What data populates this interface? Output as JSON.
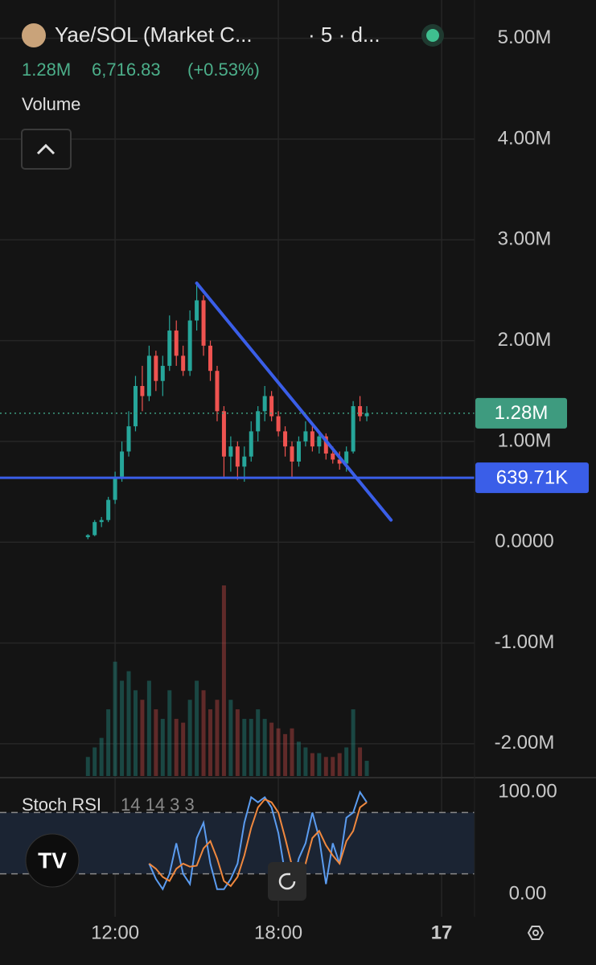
{
  "header": {
    "title": "Yae/SOL (Market C...",
    "interval": "· 5 · d...",
    "price_values": [
      "1.28M",
      "6,716.83",
      "(+0.53%)"
    ],
    "indicator": "Volume"
  },
  "chart_data": [
    {
      "type": "candlestick",
      "up_color": "#26a69a",
      "down_color": "#ef5350",
      "grid": true,
      "x": [
        11,
        11.25,
        11.5,
        11.75,
        12,
        12.25,
        12.5,
        12.75,
        13,
        13.25,
        13.5,
        13.75,
        14,
        14.25,
        14.5,
        14.75,
        15,
        15.25,
        15.5,
        15.75,
        16,
        16.25,
        16.5,
        16.75,
        17,
        17.25,
        17.5,
        17.75,
        18,
        18.25,
        18.5,
        18.75,
        19,
        19.25,
        19.5,
        19.75,
        20,
        20.25,
        20.5,
        20.75,
        21,
        21.25
      ],
      "open": [
        0.05,
        0.07,
        0.2,
        0.22,
        0.42,
        0.65,
        0.9,
        1.15,
        1.55,
        1.45,
        1.85,
        1.6,
        1.75,
        2.1,
        1.85,
        1.7,
        2.2,
        2.4,
        1.95,
        1.7,
        1.3,
        0.85,
        0.95,
        0.75,
        0.85,
        1.1,
        1.3,
        1.45,
        1.25,
        1.1,
        0.95,
        0.8,
        1.0,
        1.1,
        0.95,
        1.05,
        0.88,
        0.82,
        0.78,
        0.9,
        1.35,
        1.25
      ],
      "high": [
        0.08,
        0.22,
        0.25,
        0.45,
        0.7,
        1.0,
        1.3,
        1.65,
        1.75,
        1.95,
        1.9,
        1.85,
        2.25,
        2.2,
        1.95,
        2.3,
        2.57,
        2.45,
        2.0,
        1.75,
        1.35,
        1.05,
        1.0,
        0.95,
        1.2,
        1.35,
        1.55,
        1.5,
        1.3,
        1.15,
        1.0,
        1.05,
        1.2,
        1.15,
        1.1,
        1.08,
        0.95,
        0.9,
        0.95,
        1.4,
        1.45,
        1.35
      ],
      "low": [
        0.03,
        0.06,
        0.15,
        0.2,
        0.38,
        0.6,
        0.85,
        1.1,
        1.3,
        1.4,
        1.5,
        1.45,
        1.7,
        1.75,
        1.65,
        1.65,
        2.1,
        1.85,
        1.6,
        1.2,
        0.65,
        0.7,
        0.62,
        0.6,
        0.8,
        1.0,
        1.2,
        1.2,
        1.05,
        0.85,
        0.64,
        0.75,
        0.95,
        0.9,
        0.88,
        0.82,
        0.78,
        0.72,
        0.7,
        0.88,
        1.2,
        1.2
      ],
      "close": [
        0.07,
        0.2,
        0.22,
        0.42,
        0.65,
        0.9,
        1.15,
        1.55,
        1.45,
        1.85,
        1.6,
        1.75,
        2.1,
        1.85,
        1.7,
        2.2,
        2.4,
        1.95,
        1.7,
        1.3,
        0.85,
        0.95,
        0.75,
        0.85,
        1.1,
        1.3,
        1.45,
        1.25,
        1.1,
        0.95,
        0.8,
        1.0,
        1.1,
        0.95,
        1.05,
        0.88,
        0.82,
        0.78,
        0.9,
        1.35,
        1.25,
        1.28
      ],
      "xlim": [
        7.77,
        25.21
      ],
      "xticks": [
        {
          "value": 12,
          "label": "12:00"
        },
        {
          "value": 18,
          "label": "18:00"
        },
        {
          "value": 24,
          "label": "17"
        }
      ],
      "ylim": [
        -2.32,
        5.38
      ],
      "yticks": [
        {
          "value": 5,
          "label": "5.00M"
        },
        {
          "value": 4,
          "label": "4.00M"
        },
        {
          "value": 3,
          "label": "3.00M"
        },
        {
          "value": 2,
          "label": "2.00M"
        },
        {
          "value": 1,
          "label": "1.00M"
        },
        {
          "value": 0,
          "label": "0.0000"
        },
        {
          "value": -1,
          "label": "-1.00M"
        },
        {
          "value": -2,
          "label": "-2.00M"
        }
      ],
      "price_lines": [
        {
          "value": 1.28,
          "label": "1.28M",
          "color": "#3e9b7f",
          "style": "dotted"
        },
        {
          "value": 0.63971,
          "label": "639.71K",
          "color": "#3a5ee8",
          "style": "solid"
        }
      ],
      "trend_lines": [
        {
          "x": [
            15,
            22.14
          ],
          "y": [
            2.57,
            0.22
          ],
          "color": "#3a5ee8"
        }
      ]
    },
    {
      "type": "bar",
      "ylim": [
        0,
        100
      ],
      "values": [
        10,
        15,
        20,
        35,
        60,
        50,
        55,
        45,
        40,
        50,
        35,
        30,
        45,
        30,
        28,
        40,
        50,
        45,
        35,
        40,
        100,
        40,
        35,
        30,
        30,
        35,
        30,
        28,
        25,
        22,
        25,
        18,
        15,
        12,
        12,
        10,
        10,
        12,
        15,
        35,
        15,
        8
      ]
    },
    {
      "type": "line",
      "name": "Stoch RSI",
      "params": "14 14 3 3",
      "x": [
        13.25,
        13.5,
        13.75,
        14,
        14.25,
        14.5,
        14.75,
        15,
        15.25,
        15.5,
        15.75,
        16,
        16.25,
        16.5,
        16.75,
        17,
        17.25,
        17.5,
        17.75,
        18,
        18.25,
        18.5,
        18.75,
        19,
        19.25,
        19.5,
        19.75,
        20,
        20.25,
        20.5,
        20.75,
        21,
        21.25
      ],
      "series": [
        {
          "color": "#5b9cf0",
          "values": [
            30,
            15,
            5,
            20,
            50,
            20,
            10,
            55,
            70,
            30,
            5,
            5,
            15,
            30,
            70,
            95,
            90,
            95,
            85,
            60,
            20,
            5,
            35,
            50,
            80,
            55,
            10,
            50,
            30,
            75,
            80,
            100,
            90
          ]
        },
        {
          "color": "#f0883e",
          "values": [
            30,
            25,
            17,
            13,
            25,
            30,
            27,
            28,
            45,
            52,
            35,
            13,
            8,
            17,
            38,
            65,
            85,
            93,
            90,
            80,
            55,
            28,
            20,
            30,
            55,
            62,
            48,
            38,
            30,
            52,
            62,
            85,
            90
          ]
        }
      ],
      "ylim": [
        -22,
        113.4
      ],
      "yticks": [
        {
          "value": 100,
          "label": "100.00"
        },
        {
          "value": 0,
          "label": "0.00"
        }
      ],
      "bands": [
        20,
        80
      ]
    }
  ]
}
